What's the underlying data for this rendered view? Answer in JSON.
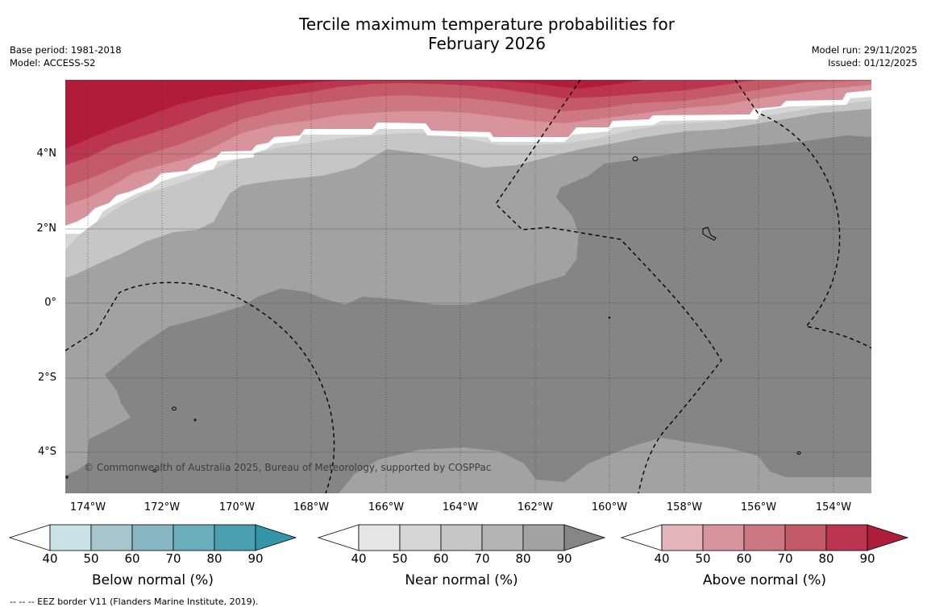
{
  "title_line1": "Tercile maximum temperature probabilities for",
  "title_line2": "February 2026",
  "base_period": "Base period: 1981-2018",
  "model": "Model: ACCESS-S2",
  "model_run": "Model run: 29/11/2025",
  "issued": "Issued: 01/12/2025",
  "copyright": "© Commonwealth of Australia 2025, Bureau of Meteorology, supported by COSPPac",
  "footer": "--  --  -- EEZ border V11 (Flanders Marine Institute, 2019).",
  "map": {
    "lat_labels": [
      "4°N",
      "2°N",
      "0°",
      "2°S",
      "4°S"
    ],
    "lon_labels": [
      "174°W",
      "172°W",
      "170°W",
      "168°W",
      "166°W",
      "164°W",
      "162°W",
      "160°W",
      "158°W",
      "156°W",
      "154°W"
    ]
  },
  "colorbars": {
    "below": {
      "title": "Below normal (%)",
      "ticks": [
        "40",
        "50",
        "60",
        "70",
        "80",
        "90"
      ],
      "colors": [
        "#ffffff",
        "#c8e2e8",
        "#a6c6cc",
        "#88b6c2",
        "#6aaebc",
        "#4aa0b0",
        "#3494a8"
      ]
    },
    "near": {
      "title": "Near normal (%)",
      "ticks": [
        "40",
        "50",
        "60",
        "70",
        "80",
        "90"
      ],
      "colors": [
        "#ffffff",
        "#e6e6e6",
        "#d6d6d6",
        "#c6c6c6",
        "#b4b4b4",
        "#a2a2a2",
        "#868686"
      ]
    },
    "above": {
      "title": "Above normal (%)",
      "ticks": [
        "40",
        "50",
        "60",
        "70",
        "80",
        "90"
      ],
      "colors": [
        "#ffffff",
        "#e2b6bb",
        "#d8949c",
        "#cc7782",
        "#c45a68",
        "#bc3550",
        "#ae1e3a"
      ]
    }
  }
}
